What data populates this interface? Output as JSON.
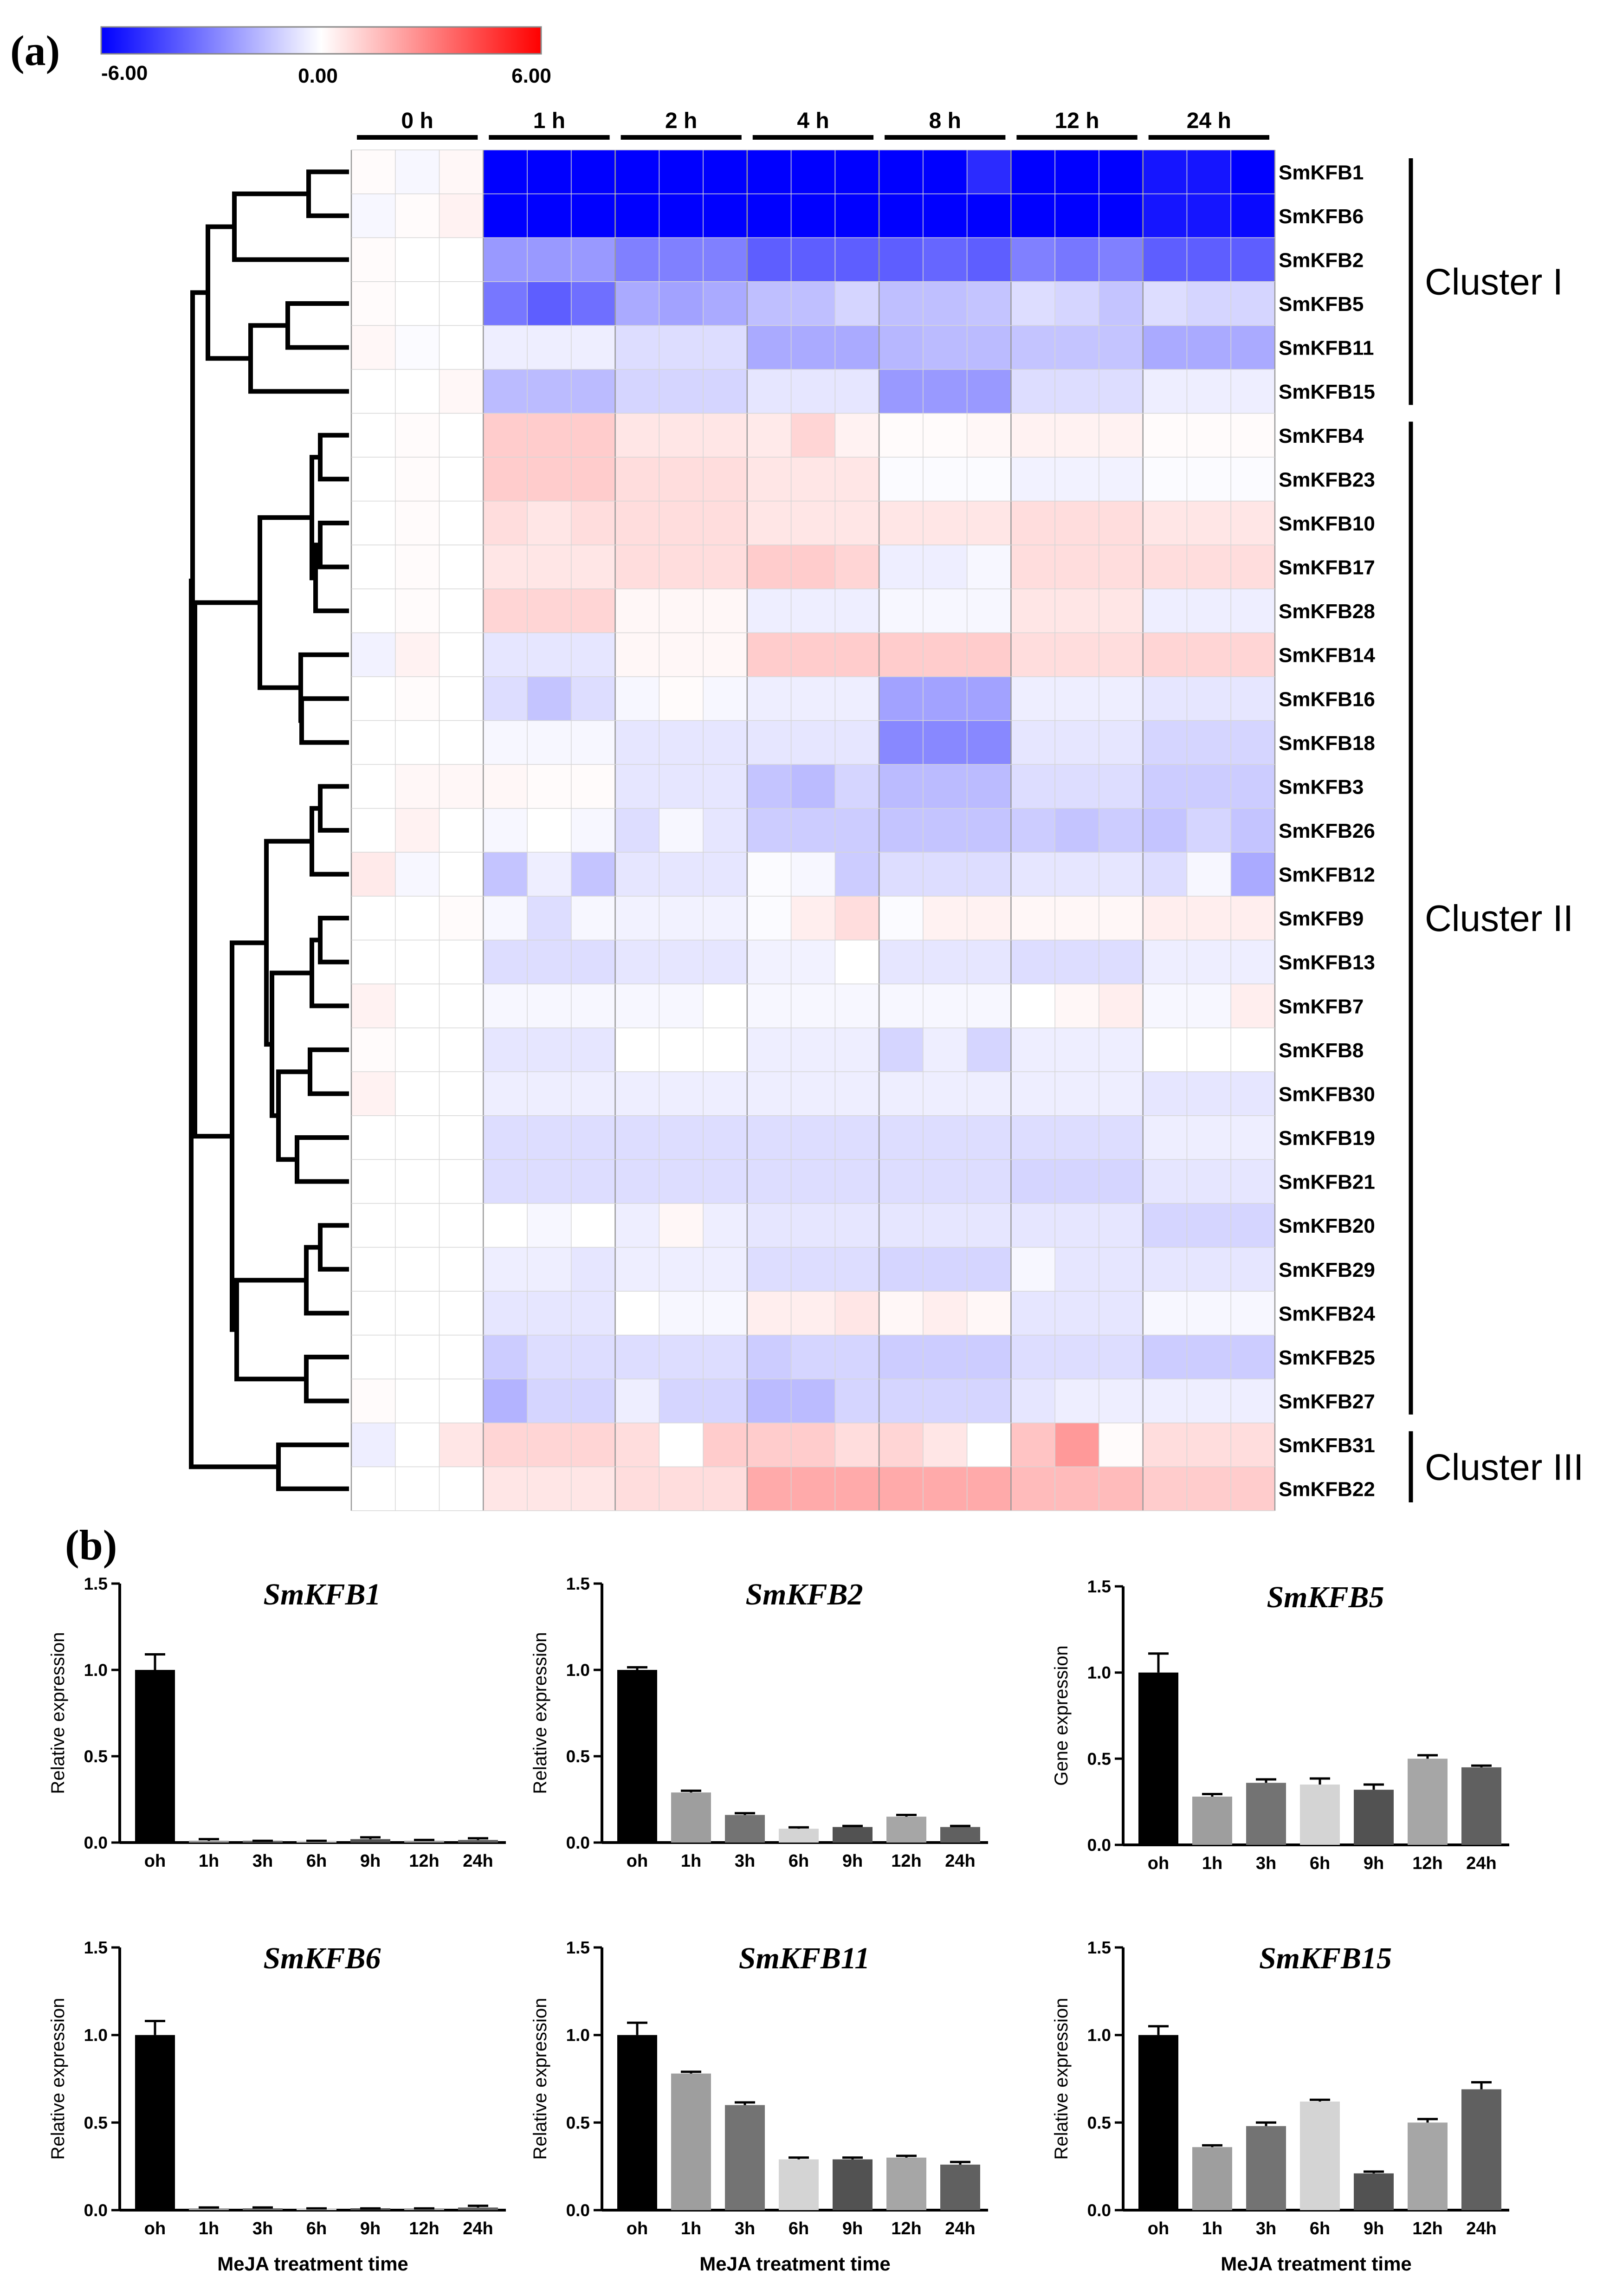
{
  "figure": {
    "panel_a_label": "(a)",
    "panel_b_label": "(b)"
  },
  "chart_data": [
    {
      "type": "heatmap",
      "title": "",
      "color_scale": {
        "min": -6.0,
        "mid": 0.0,
        "max": 6.0,
        "min_label": "-6.00",
        "mid_label": "0.00",
        "max_label": "6.00",
        "min_color": "#0000ff",
        "mid_color": "#ffffff",
        "max_color": "#ff0000"
      },
      "column_groups": [
        "0 h",
        "1 h",
        "2 h",
        "4 h",
        "8 h",
        "12 h",
        "24 h"
      ],
      "replicates_per_group": 3,
      "rows": [
        "SmKFB1",
        "SmKFB6",
        "SmKFB2",
        "SmKFB5",
        "SmKFB11",
        "SmKFB15",
        "SmKFB4",
        "SmKFB23",
        "SmKFB10",
        "SmKFB17",
        "SmKFB28",
        "SmKFB14",
        "SmKFB16",
        "SmKFB18",
        "SmKFB3",
        "SmKFB26",
        "SmKFB12",
        "SmKFB9",
        "SmKFB13",
        "SmKFB7",
        "SmKFB8",
        "SmKFB30",
        "SmKFB19",
        "SmKFB21",
        "SmKFB20",
        "SmKFB29",
        "SmKFB24",
        "SmKFB25",
        "SmKFB27",
        "SmKFB31",
        "SmKFB22"
      ],
      "values": [
        [
          0.1,
          -0.2,
          0.2,
          -6,
          -6,
          -6,
          -6,
          -6,
          -6,
          -6,
          -6,
          -6,
          -6,
          -6,
          -5,
          -6,
          -6,
          -6,
          -5.5,
          -5.5,
          -6
        ],
        [
          -0.2,
          0.1,
          0.3,
          -6,
          -6,
          -6,
          -6,
          -6,
          -6,
          -6,
          -6,
          -6,
          -6,
          -6,
          -6,
          -6,
          -6,
          -6,
          -5.5,
          -5.5,
          -5.8
        ],
        [
          0.1,
          0.0,
          0.0,
          -2.4,
          -2.4,
          -2.4,
          -3,
          -3,
          -3,
          -3.8,
          -3.8,
          -3.8,
          -3.8,
          -3.6,
          -3.8,
          -3,
          -3.2,
          -3,
          -3.8,
          -3.8,
          -3.8
        ],
        [
          0.1,
          0.0,
          0.0,
          -3.2,
          -3.8,
          -3.4,
          -2,
          -2.2,
          -2,
          -1.5,
          -1.5,
          -1.0,
          -1.5,
          -1.5,
          -1.4,
          -0.8,
          -1.0,
          -1.4,
          -0.8,
          -1.0,
          -1.0
        ],
        [
          0.2,
          -0.1,
          0.0,
          -0.4,
          -0.4,
          -0.4,
          -0.8,
          -0.8,
          -0.8,
          -2,
          -2,
          -2,
          -1.7,
          -1.6,
          -1.6,
          -1.4,
          -1.4,
          -1.4,
          -2,
          -2,
          -2
        ],
        [
          0.0,
          0.0,
          0.2,
          -1.6,
          -1.6,
          -1.6,
          -1.0,
          -1.0,
          -1.0,
          -0.6,
          -0.6,
          -0.6,
          -2.4,
          -2.4,
          -2.4,
          -0.8,
          -0.8,
          -0.8,
          -0.4,
          -0.4,
          -0.4
        ],
        [
          0.0,
          0.1,
          0.0,
          1.2,
          1.2,
          1.2,
          0.6,
          0.6,
          0.6,
          0.5,
          1.0,
          0.3,
          0.1,
          0.1,
          0.2,
          0.3,
          0.3,
          0.3,
          0.1,
          0.1,
          0.1
        ],
        [
          0.0,
          0.1,
          0.0,
          1.2,
          1.2,
          1.2,
          0.8,
          0.8,
          0.8,
          0.6,
          0.6,
          0.6,
          -0.1,
          -0.1,
          -0.1,
          -0.3,
          -0.3,
          -0.3,
          -0.1,
          -0.1,
          -0.1
        ],
        [
          0.0,
          0.1,
          0.0,
          0.8,
          0.6,
          0.8,
          0.8,
          0.8,
          0.8,
          0.6,
          0.6,
          0.6,
          0.6,
          0.6,
          0.6,
          0.8,
          0.8,
          0.8,
          0.6,
          0.6,
          0.6
        ],
        [
          0.0,
          0.1,
          0.0,
          0.6,
          0.6,
          0.6,
          0.8,
          0.8,
          0.8,
          1.2,
          1.2,
          1.0,
          -0.4,
          -0.4,
          -0.2,
          0.8,
          0.8,
          0.8,
          0.8,
          0.8,
          0.8
        ],
        [
          0.0,
          0.1,
          0.0,
          1.0,
          1.0,
          1.0,
          0.2,
          0.2,
          0.2,
          -0.4,
          -0.4,
          -0.4,
          -0.2,
          -0.2,
          -0.2,
          0.6,
          0.6,
          0.6,
          -0.4,
          -0.4,
          -0.4
        ],
        [
          -0.3,
          0.3,
          0.0,
          -0.6,
          -0.6,
          -0.6,
          0.2,
          0.2,
          0.2,
          1.2,
          1.2,
          1.2,
          1.2,
          1.2,
          1.2,
          0.8,
          0.8,
          0.8,
          1.0,
          1.0,
          1.0
        ],
        [
          0.0,
          0.1,
          0.0,
          -0.8,
          -1.4,
          -0.8,
          -0.2,
          0.1,
          -0.2,
          -0.4,
          -0.4,
          -0.4,
          -2.2,
          -2.2,
          -2.2,
          -0.4,
          -0.4,
          -0.4,
          -0.6,
          -0.6,
          -0.6
        ],
        [
          0.0,
          0.0,
          0.0,
          -0.2,
          -0.2,
          -0.2,
          -0.6,
          -0.6,
          -0.6,
          -0.6,
          -0.6,
          -0.6,
          -2.8,
          -2.8,
          -2.8,
          -0.6,
          -0.6,
          -0.6,
          -1.0,
          -1.0,
          -1.0
        ],
        [
          0.0,
          0.2,
          0.2,
          0.2,
          0.1,
          0.1,
          -0.6,
          -0.6,
          -0.6,
          -1.4,
          -1.6,
          -1.0,
          -1.6,
          -1.6,
          -1.6,
          -0.8,
          -0.8,
          -0.8,
          -1.2,
          -1.2,
          -1.2
        ],
        [
          0.0,
          0.3,
          0.0,
          -0.2,
          0.0,
          -0.2,
          -0.8,
          -0.2,
          -0.6,
          -1.2,
          -1.2,
          -1.2,
          -1.4,
          -1.4,
          -1.4,
          -1.2,
          -1.4,
          -1.2,
          -1.4,
          -1.0,
          -1.4
        ],
        [
          0.5,
          -0.2,
          0.0,
          -1.4,
          -0.4,
          -1.4,
          -0.6,
          -0.6,
          -0.6,
          -0.1,
          -0.2,
          -1.2,
          -0.8,
          -0.8,
          -0.8,
          -0.6,
          -0.6,
          -0.6,
          -0.8,
          -0.2,
          -2.0
        ],
        [
          0.0,
          0.0,
          0.1,
          -0.2,
          -0.8,
          -0.2,
          -0.3,
          -0.3,
          -0.3,
          -0.1,
          0.4,
          0.8,
          -0.1,
          0.3,
          0.3,
          0.2,
          0.2,
          0.2,
          0.4,
          0.4,
          0.4
        ],
        [
          0.0,
          0.0,
          0.0,
          -0.8,
          -0.8,
          -0.8,
          -0.6,
          -0.6,
          -0.6,
          -0.3,
          -0.3,
          0.0,
          -0.6,
          -0.6,
          -0.6,
          -0.8,
          -0.8,
          -0.8,
          -0.4,
          -0.4,
          -0.4
        ],
        [
          0.3,
          0.0,
          0.0,
          -0.2,
          -0.2,
          -0.2,
          -0.2,
          -0.2,
          0.0,
          -0.2,
          -0.2,
          -0.2,
          -0.2,
          -0.2,
          -0.2,
          0.0,
          0.2,
          0.4,
          -0.2,
          -0.2,
          0.4
        ],
        [
          0.1,
          0.0,
          0.0,
          -0.6,
          -0.6,
          -0.6,
          0.0,
          0.0,
          0.0,
          -0.4,
          -0.4,
          -0.4,
          -1.0,
          -0.4,
          -1.0,
          -0.4,
          -0.4,
          -0.4,
          0.0,
          0.0,
          0.0
        ],
        [
          0.3,
          0.0,
          0.0,
          -0.4,
          -0.4,
          -0.4,
          -0.4,
          -0.4,
          -0.4,
          -0.4,
          -0.4,
          -0.4,
          -0.4,
          -0.4,
          -0.4,
          -0.4,
          -0.4,
          -0.4,
          -0.6,
          -0.6,
          -0.6
        ],
        [
          0.0,
          0.0,
          0.0,
          -0.8,
          -0.8,
          -0.8,
          -0.8,
          -0.8,
          -0.8,
          -0.8,
          -0.8,
          -0.8,
          -0.8,
          -0.8,
          -0.8,
          -0.8,
          -0.8,
          -0.8,
          -0.4,
          -0.4,
          -0.4
        ],
        [
          0.0,
          0.0,
          0.0,
          -0.8,
          -0.8,
          -0.8,
          -0.8,
          -0.8,
          -0.8,
          -0.8,
          -0.8,
          -0.8,
          -0.8,
          -0.8,
          -0.8,
          -1.0,
          -1.0,
          -1.0,
          -0.6,
          -0.6,
          -0.6
        ],
        [
          0.0,
          0.0,
          0.0,
          0.0,
          -0.2,
          0.0,
          -0.4,
          0.2,
          -0.4,
          -0.6,
          -0.6,
          -0.6,
          -0.6,
          -0.6,
          -0.6,
          -0.6,
          -0.6,
          -0.6,
          -1.0,
          -1.0,
          -1.0
        ],
        [
          0.0,
          0.0,
          0.0,
          -0.4,
          -0.4,
          -0.6,
          -0.4,
          -0.4,
          -0.4,
          -0.8,
          -0.8,
          -0.8,
          -1.0,
          -1.0,
          -1.0,
          -0.2,
          -0.6,
          -0.6,
          -0.6,
          -0.6,
          -0.6
        ],
        [
          0.0,
          0.0,
          0.0,
          -0.6,
          -0.6,
          -0.6,
          0.0,
          -0.2,
          -0.2,
          0.4,
          0.4,
          0.6,
          0.2,
          0.4,
          0.2,
          -0.6,
          -0.6,
          -0.6,
          -0.2,
          -0.2,
          -0.2
        ],
        [
          0.0,
          0.0,
          0.0,
          -1.2,
          -0.8,
          -0.8,
          -0.8,
          -0.8,
          -0.8,
          -1.2,
          -1.0,
          -1.0,
          -1.2,
          -1.2,
          -1.2,
          -0.8,
          -0.8,
          -0.8,
          -1.2,
          -1.2,
          -1.2
        ],
        [
          0.1,
          0.0,
          0.0,
          -1.8,
          -1.0,
          -1.0,
          -0.4,
          -1.0,
          -1.0,
          -1.6,
          -1.6,
          -1.0,
          -1.0,
          -1.0,
          -1.0,
          -0.6,
          -0.4,
          -0.4,
          -0.4,
          -0.4,
          -0.4
        ],
        [
          -0.4,
          0.0,
          0.6,
          1.0,
          1.0,
          1.0,
          0.8,
          0.0,
          1.2,
          1.2,
          1.2,
          0.8,
          1.0,
          0.6,
          0.0,
          1.4,
          2.4,
          0.1,
          0.8,
          0.8,
          0.8
        ],
        [
          0.0,
          0.0,
          0.0,
          0.6,
          0.6,
          0.6,
          0.8,
          0.8,
          0.8,
          2.0,
          2.0,
          2.0,
          2.0,
          2.0,
          2.0,
          1.6,
          1.6,
          1.6,
          1.2,
          1.2,
          1.2
        ]
      ],
      "clusters": [
        {
          "name": "Cluster I",
          "first": "SmKFB1",
          "last": "SmKFB15"
        },
        {
          "name": "Cluster II",
          "first": "SmKFB4",
          "last": "SmKFB27"
        },
        {
          "name": "Cluster III",
          "first": "SmKFB31",
          "last": "SmKFB22"
        }
      ]
    },
    {
      "type": "bar",
      "title": "SmKFB1",
      "categories": [
        "oh",
        "1h",
        "3h",
        "6h",
        "9h",
        "12h",
        "24h"
      ],
      "values": [
        1.0,
        0.01,
        0.005,
        0.005,
        0.02,
        0.01,
        0.015
      ],
      "errors": [
        0.09,
        0.01,
        0.005,
        0.005,
        0.01,
        0.005,
        0.01
      ],
      "ylabel": "Relative expression",
      "xlabel": "",
      "ylim": [
        0,
        1.5
      ],
      "yticks": [
        "0.0",
        "0.5",
        "1.0",
        "1.5"
      ]
    },
    {
      "type": "bar",
      "title": "SmKFB2",
      "categories": [
        "oh",
        "1h",
        "3h",
        "6h",
        "9h",
        "12h",
        "24h"
      ],
      "values": [
        1.0,
        0.29,
        0.16,
        0.08,
        0.09,
        0.15,
        0.09
      ],
      "errors": [
        0.015,
        0.01,
        0.01,
        0.008,
        0.006,
        0.01,
        0.006
      ],
      "ylabel": "Relative expression",
      "xlabel": "",
      "ylim": [
        0,
        1.5
      ],
      "yticks": [
        "0.0",
        "0.5",
        "1.0",
        "1.5"
      ]
    },
    {
      "type": "bar",
      "title": "SmKFB5",
      "categories": [
        "oh",
        "1h",
        "3h",
        "6h",
        "9h",
        "12h",
        "24h"
      ],
      "values": [
        1.0,
        0.28,
        0.36,
        0.35,
        0.32,
        0.5,
        0.45
      ],
      "errors": [
        0.11,
        0.015,
        0.02,
        0.035,
        0.03,
        0.02,
        0.01
      ],
      "ylabel": "Gene expression",
      "xlabel": "",
      "ylim": [
        0,
        1.5
      ],
      "yticks": [
        "0.0",
        "0.5",
        "1.0",
        "1.5"
      ]
    },
    {
      "type": "bar",
      "title": "SmKFB6",
      "categories": [
        "oh",
        "1h",
        "3h",
        "6h",
        "9h",
        "12h",
        "24h"
      ],
      "values": [
        1.0,
        0.01,
        0.01,
        0.005,
        0.005,
        0.005,
        0.015
      ],
      "errors": [
        0.08,
        0.005,
        0.005,
        0.005,
        0.005,
        0.005,
        0.01
      ],
      "ylabel": "Relative expression",
      "xlabel": "MeJA treatment time",
      "ylim": [
        0,
        1.5
      ],
      "yticks": [
        "0.0",
        "0.5",
        "1.0",
        "1.5"
      ]
    },
    {
      "type": "bar",
      "title": "SmKFB11",
      "categories": [
        "oh",
        "1h",
        "3h",
        "6h",
        "9h",
        "12h",
        "24h"
      ],
      "values": [
        1.0,
        0.78,
        0.6,
        0.29,
        0.29,
        0.3,
        0.26
      ],
      "errors": [
        0.07,
        0.01,
        0.015,
        0.01,
        0.01,
        0.01,
        0.015
      ],
      "ylabel": "Relative expression",
      "xlabel": "MeJA treatment time",
      "ylim": [
        0,
        1.5
      ],
      "yticks": [
        "0.0",
        "0.5",
        "1.0",
        "1.5"
      ]
    },
    {
      "type": "bar",
      "title": "SmKFB15",
      "categories": [
        "oh",
        "1h",
        "3h",
        "6h",
        "9h",
        "12h",
        "24h"
      ],
      "values": [
        1.0,
        0.36,
        0.48,
        0.62,
        0.21,
        0.5,
        0.69
      ],
      "errors": [
        0.05,
        0.01,
        0.02,
        0.01,
        0.01,
        0.02,
        0.04
      ],
      "ylabel": "Relative expression",
      "xlabel": "MeJA treatment time",
      "ylim": [
        0,
        1.5
      ],
      "yticks": [
        "0.0",
        "0.5",
        "1.0",
        "1.5"
      ]
    }
  ]
}
